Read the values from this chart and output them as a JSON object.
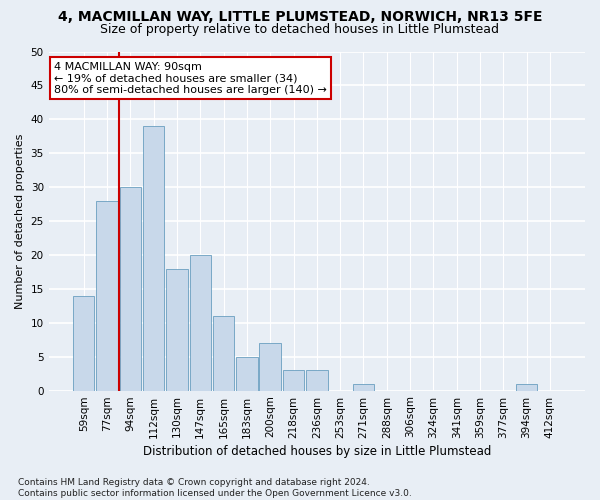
{
  "title": "4, MACMILLAN WAY, LITTLE PLUMSTEAD, NORWICH, NR13 5FE",
  "subtitle": "Size of property relative to detached houses in Little Plumstead",
  "xlabel": "Distribution of detached houses by size in Little Plumstead",
  "ylabel": "Number of detached properties",
  "categories": [
    "59sqm",
    "77sqm",
    "94sqm",
    "112sqm",
    "130sqm",
    "147sqm",
    "165sqm",
    "183sqm",
    "200sqm",
    "218sqm",
    "236sqm",
    "253sqm",
    "271sqm",
    "288sqm",
    "306sqm",
    "324sqm",
    "341sqm",
    "359sqm",
    "377sqm",
    "394sqm",
    "412sqm"
  ],
  "values": [
    14,
    28,
    30,
    39,
    18,
    20,
    11,
    5,
    7,
    3,
    3,
    0,
    1,
    0,
    0,
    0,
    0,
    0,
    0,
    1,
    0
  ],
  "bar_color": "#c8d8ea",
  "bar_edge_color": "#6a9fc0",
  "vline_index": 2,
  "vline_color": "#cc0000",
  "annotation_text": "4 MACMILLAN WAY: 90sqm\n← 19% of detached houses are smaller (34)\n80% of semi-detached houses are larger (140) →",
  "annotation_box_color": "#ffffff",
  "annotation_box_edge": "#cc0000",
  "ylim": [
    0,
    50
  ],
  "yticks": [
    0,
    5,
    10,
    15,
    20,
    25,
    30,
    35,
    40,
    45,
    50
  ],
  "fig_bg_color": "#e8eef5",
  "plot_bg_color": "#e8eef5",
  "grid_color": "#ffffff",
  "footnote": "Contains HM Land Registry data © Crown copyright and database right 2024.\nContains public sector information licensed under the Open Government Licence v3.0.",
  "title_fontsize": 10,
  "subtitle_fontsize": 9,
  "xlabel_fontsize": 8.5,
  "ylabel_fontsize": 8,
  "tick_fontsize": 7.5,
  "annot_fontsize": 8,
  "footnote_fontsize": 6.5
}
